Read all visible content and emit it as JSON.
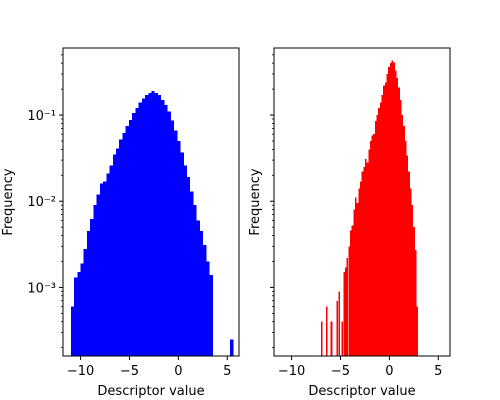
{
  "chart_data": [
    {
      "type": "bar",
      "panel": "left",
      "xlabel": "Descriptor value",
      "ylabel": "Frequency",
      "yscale": "log",
      "xlim": [
        -11.8,
        6.2
      ],
      "ylim": [
        0.00016,
        0.6
      ],
      "xticks": [
        -10,
        -5,
        0,
        5
      ],
      "xtick_labels": [
        "−10",
        "−5",
        "0",
        "5"
      ],
      "yticks": [
        0.001,
        0.01,
        0.1
      ],
      "ytick_labels": [
        "10⁻³",
        "10⁻²",
        "10⁻¹"
      ],
      "show_ytick_labels": true,
      "color": "#0000ff",
      "bin_width": 0.33,
      "bins": [
        [
          -11.0,
          0.0006
        ],
        [
          -10.67,
          0.0013
        ],
        [
          -10.34,
          0.0015
        ],
        [
          -10.01,
          0.0019
        ],
        [
          -9.68,
          0.0028
        ],
        [
          -9.35,
          0.0045
        ],
        [
          -9.02,
          0.0062
        ],
        [
          -8.69,
          0.009
        ],
        [
          -8.36,
          0.012
        ],
        [
          -8.03,
          0.016
        ],
        [
          -7.7,
          0.017
        ],
        [
          -7.37,
          0.021
        ],
        [
          -7.04,
          0.026
        ],
        [
          -6.71,
          0.035
        ],
        [
          -6.38,
          0.041
        ],
        [
          -6.05,
          0.052
        ],
        [
          -5.72,
          0.062
        ],
        [
          -5.39,
          0.075
        ],
        [
          -5.06,
          0.088
        ],
        [
          -4.73,
          0.105
        ],
        [
          -4.4,
          0.12
        ],
        [
          -4.07,
          0.14
        ],
        [
          -3.74,
          0.155
        ],
        [
          -3.41,
          0.172
        ],
        [
          -3.08,
          0.18
        ],
        [
          -2.75,
          0.19
        ],
        [
          -2.42,
          0.18
        ],
        [
          -2.09,
          0.17
        ],
        [
          -1.76,
          0.15
        ],
        [
          -1.43,
          0.13
        ],
        [
          -1.1,
          0.11
        ],
        [
          -0.77,
          0.087
        ],
        [
          -0.44,
          0.066
        ],
        [
          -0.11,
          0.05
        ],
        [
          0.22,
          0.037
        ],
        [
          0.55,
          0.026
        ],
        [
          0.88,
          0.019
        ],
        [
          1.21,
          0.013
        ],
        [
          1.54,
          0.009
        ],
        [
          1.87,
          0.006
        ],
        [
          2.2,
          0.0045
        ],
        [
          2.53,
          0.0031
        ],
        [
          2.86,
          0.002
        ],
        [
          3.19,
          0.0014
        ],
        [
          5.3,
          0.00025
        ]
      ]
    },
    {
      "type": "bar",
      "panel": "right",
      "xlabel": "Descriptor value",
      "ylabel": "Frequency",
      "yscale": "log",
      "xlim": [
        -11.8,
        6.2
      ],
      "ylim": [
        0.00016,
        0.6
      ],
      "xticks": [
        -10,
        -5,
        0,
        5
      ],
      "xtick_labels": [
        "−10",
        "−5",
        "0",
        "5"
      ],
      "yticks": [
        0.001,
        0.01,
        0.1
      ],
      "ytick_labels": [
        "",
        "",
        ""
      ],
      "show_ytick_labels": false,
      "color": "#ff0000",
      "bin_width": 0.17,
      "bins": [
        [
          -7.0,
          0.0004
        ],
        [
          -6.5,
          0.0006
        ],
        [
          -6.0,
          0.0004
        ],
        [
          -5.4,
          0.0007
        ],
        [
          -5.2,
          0.0009
        ],
        [
          -4.9,
          0.0004
        ],
        [
          -4.7,
          0.0015
        ],
        [
          -4.55,
          0.0017
        ],
        [
          -4.4,
          0.0022
        ],
        [
          -4.2,
          0.003
        ],
        [
          -4.03,
          0.0046
        ],
        [
          -3.86,
          0.0052
        ],
        [
          -3.69,
          0.008
        ],
        [
          -3.52,
          0.011
        ],
        [
          -3.35,
          0.0095
        ],
        [
          -3.18,
          0.014
        ],
        [
          -3.01,
          0.017
        ],
        [
          -2.84,
          0.022
        ],
        [
          -2.67,
          0.025
        ],
        [
          -2.5,
          0.031
        ],
        [
          -2.33,
          0.028
        ],
        [
          -2.16,
          0.04
        ],
        [
          -1.99,
          0.05
        ],
        [
          -1.82,
          0.058
        ],
        [
          -1.65,
          0.06
        ],
        [
          -1.48,
          0.085
        ],
        [
          -1.31,
          0.1
        ],
        [
          -1.14,
          0.12
        ],
        [
          -0.97,
          0.14
        ],
        [
          -0.8,
          0.17
        ],
        [
          -0.63,
          0.22
        ],
        [
          -0.46,
          0.24
        ],
        [
          -0.29,
          0.3
        ],
        [
          -0.12,
          0.36
        ],
        [
          0.05,
          0.4
        ],
        [
          0.22,
          0.43
        ],
        [
          0.39,
          0.41
        ],
        [
          0.56,
          0.33
        ],
        [
          0.73,
          0.27
        ],
        [
          0.9,
          0.21
        ],
        [
          1.07,
          0.15
        ],
        [
          1.24,
          0.1
        ],
        [
          1.41,
          0.075
        ],
        [
          1.58,
          0.05
        ],
        [
          1.75,
          0.034
        ],
        [
          1.92,
          0.022
        ],
        [
          2.09,
          0.014
        ],
        [
          2.26,
          0.009
        ],
        [
          2.43,
          0.005
        ],
        [
          2.6,
          0.0027
        ],
        [
          2.77,
          0.0006
        ]
      ]
    }
  ]
}
